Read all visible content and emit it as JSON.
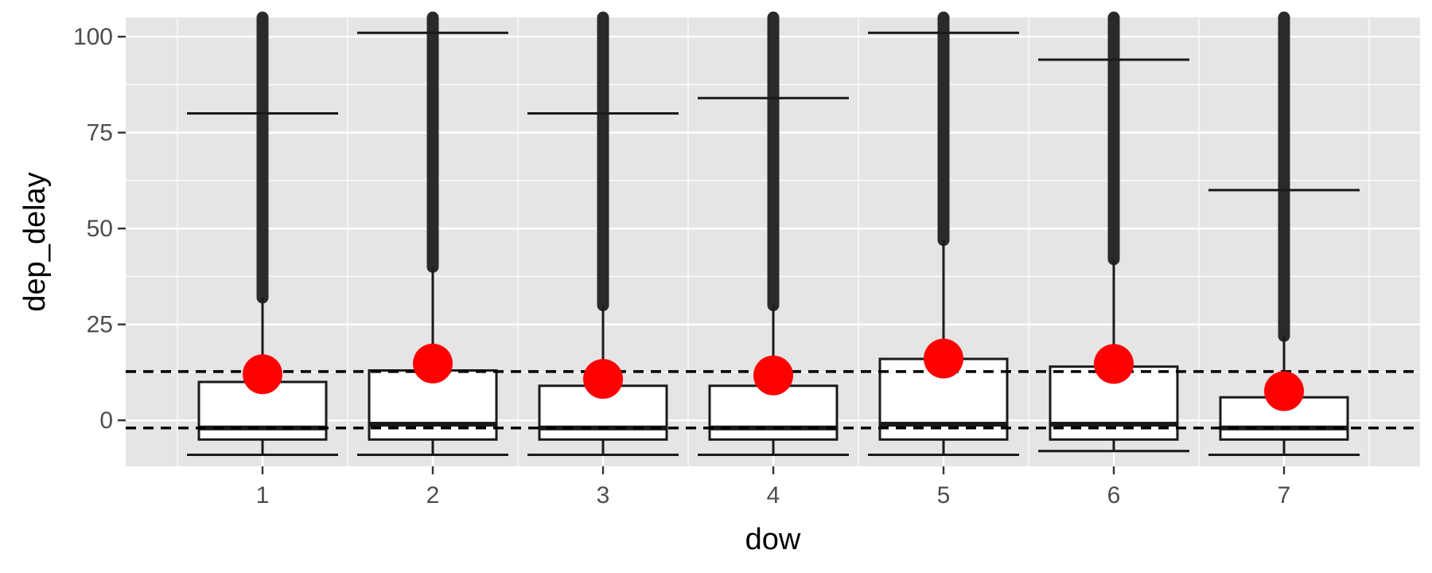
{
  "chart_data": {
    "type": "boxplot",
    "xlabel": "dow",
    "ylabel": "dep_delay",
    "categories": [
      "1",
      "2",
      "3",
      "4",
      "5",
      "6",
      "7"
    ],
    "ylim": [
      -12,
      105
    ],
    "yticks": [
      0,
      25,
      50,
      75,
      100
    ],
    "y_minor_ticks": [
      -12.5,
      12.5,
      37.5,
      62.5,
      87.5
    ],
    "grid": true,
    "background": "#e5e5e5",
    "boxes": [
      {
        "category": "1",
        "q1": -5,
        "median": -2,
        "q3": 10,
        "whisker_low": -9,
        "whisker_high": 32,
        "outliers_from": 32,
        "mean": 12,
        "p90": 80
      },
      {
        "category": "2",
        "q1": -5,
        "median": -1,
        "q3": 13,
        "whisker_low": -9,
        "whisker_high": 40,
        "outliers_from": 40,
        "mean": 14.8,
        "p90": 101
      },
      {
        "category": "3",
        "q1": -5,
        "median": -2,
        "q3": 9,
        "whisker_low": -9,
        "whisker_high": 30,
        "outliers_from": 30,
        "mean": 10.8,
        "p90": 80
      },
      {
        "category": "4",
        "q1": -5,
        "median": -2,
        "q3": 9,
        "whisker_low": -9,
        "whisker_high": 30,
        "outliers_from": 30,
        "mean": 11.7,
        "p90": 84
      },
      {
        "category": "5",
        "q1": -5,
        "median": -1,
        "q3": 16,
        "whisker_low": -9,
        "whisker_high": 47,
        "outliers_from": 47,
        "mean": 16.1,
        "p90": 101
      },
      {
        "category": "6",
        "q1": -5,
        "median": -1,
        "q3": 14,
        "whisker_low": -8,
        "whisker_high": 42,
        "outliers_from": 42,
        "mean": 14.7,
        "p90": 94
      },
      {
        "category": "7",
        "q1": -5,
        "median": -2,
        "q3": 6,
        "whisker_low": -9,
        "whisker_high": 22,
        "outliers_from": 22,
        "mean": 7.6,
        "p90": 60
      }
    ],
    "reference_lines": [
      12.7,
      -2
    ],
    "colors": {
      "mean_point": "#ff0000",
      "box_fill": "#ffffff",
      "stroke": "#1a1a1a",
      "grid": "#ffffff"
    }
  }
}
